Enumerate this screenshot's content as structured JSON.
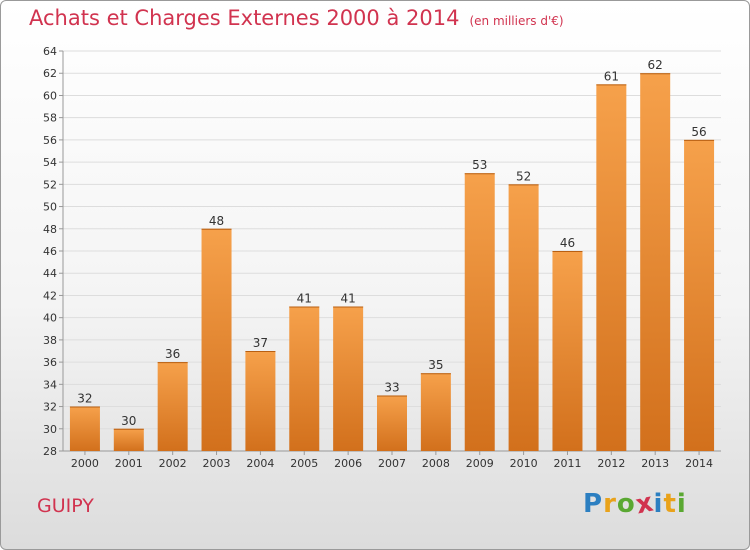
{
  "title": "Achats et Charges Externes 2000 à 2014",
  "unit_label": "(en milliers d'€)",
  "commune": "GUIPY",
  "logo": {
    "text": "Proxiti",
    "letters": [
      "P",
      "r",
      "o",
      "x",
      "i",
      "t",
      "i"
    ],
    "colors": [
      "#2c7fc1",
      "#e9a21a",
      "#5aa832",
      "#d1334f",
      "#2c7fc1",
      "#e9a21a",
      "#5aa832"
    ]
  },
  "colors": {
    "title": "#d1334f",
    "bar_top": "#f6a14b",
    "bar_bottom": "#d2701c",
    "grid": "#dddddd"
  },
  "chart_data": {
    "type": "bar",
    "title": "Achats et Charges Externes 2000 à 2014",
    "subtitle": "(en milliers d'€)",
    "categories": [
      "2000",
      "2001",
      "2002",
      "2003",
      "2004",
      "2005",
      "2006",
      "2007",
      "2008",
      "2009",
      "2010",
      "2011",
      "2012",
      "2013",
      "2014"
    ],
    "values": [
      32,
      30,
      36,
      48,
      37,
      41,
      41,
      33,
      35,
      53,
      52,
      46,
      61,
      62,
      56
    ],
    "ylim": [
      28,
      64
    ],
    "yticks": [
      28,
      30,
      32,
      34,
      36,
      38,
      40,
      42,
      44,
      46,
      48,
      50,
      52,
      54,
      56,
      58,
      60,
      62,
      64
    ],
    "grid": true,
    "legend": "none"
  }
}
